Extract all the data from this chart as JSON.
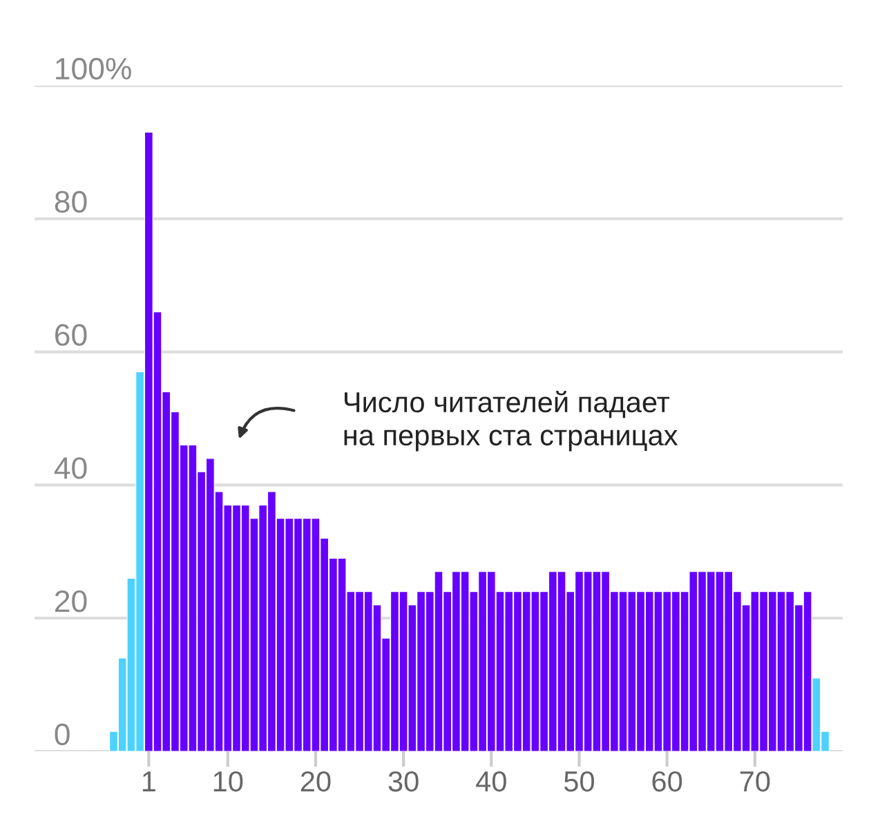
{
  "chart_data": {
    "type": "bar",
    "x": [
      -3,
      -2,
      -1,
      0,
      1,
      2,
      3,
      4,
      5,
      6,
      7,
      8,
      9,
      10,
      11,
      12,
      13,
      14,
      15,
      16,
      17,
      18,
      19,
      20,
      21,
      22,
      23,
      24,
      25,
      26,
      27,
      28,
      29,
      30,
      31,
      32,
      33,
      34,
      35,
      36,
      37,
      38,
      39,
      40,
      41,
      42,
      43,
      44,
      45,
      46,
      47,
      48,
      49,
      50,
      51,
      52,
      53,
      54,
      55,
      56,
      57,
      58,
      59,
      60,
      61,
      62,
      63,
      64,
      65,
      66,
      67,
      68,
      69,
      70,
      71,
      72,
      73,
      74,
      75,
      76,
      77,
      78
    ],
    "values": [
      3,
      14,
      26,
      57,
      93,
      66,
      54,
      51,
      46,
      46,
      42,
      44,
      39,
      37,
      37,
      37,
      35,
      37,
      39,
      35,
      35,
      35,
      35,
      35,
      32,
      29,
      29,
      24,
      24,
      24,
      22,
      17,
      24,
      24,
      22,
      24,
      24,
      27,
      24,
      27,
      27,
      24,
      27,
      27,
      24,
      24,
      24,
      24,
      24,
      24,
      27,
      27,
      24,
      27,
      27,
      27,
      27,
      24,
      24,
      24,
      24,
      24,
      24,
      24,
      24,
      24,
      27,
      27,
      27,
      27,
      27,
      24,
      22,
      24,
      24,
      24,
      24,
      24,
      22,
      24,
      11,
      3
    ],
    "colors": [
      "#4dd2ff",
      "#4dd2ff",
      "#4dd2ff",
      "#4dd2ff",
      "#6600ff",
      "#6600ff",
      "#6600ff",
      "#6600ff",
      "#6600ff",
      "#6600ff",
      "#6600ff",
      "#6600ff",
      "#6600ff",
      "#6600ff",
      "#6600ff",
      "#6600ff",
      "#6600ff",
      "#6600ff",
      "#6600ff",
      "#6600ff",
      "#6600ff",
      "#6600ff",
      "#6600ff",
      "#6600ff",
      "#6600ff",
      "#6600ff",
      "#6600ff",
      "#6600ff",
      "#6600ff",
      "#6600ff",
      "#6600ff",
      "#6600ff",
      "#6600ff",
      "#6600ff",
      "#6600ff",
      "#6600ff",
      "#6600ff",
      "#6600ff",
      "#6600ff",
      "#6600ff",
      "#6600ff",
      "#6600ff",
      "#6600ff",
      "#6600ff",
      "#6600ff",
      "#6600ff",
      "#6600ff",
      "#6600ff",
      "#6600ff",
      "#6600ff",
      "#6600ff",
      "#6600ff",
      "#6600ff",
      "#6600ff",
      "#6600ff",
      "#6600ff",
      "#6600ff",
      "#6600ff",
      "#6600ff",
      "#6600ff",
      "#6600ff",
      "#6600ff",
      "#6600ff",
      "#6600ff",
      "#6600ff",
      "#6600ff",
      "#6600ff",
      "#6600ff",
      "#6600ff",
      "#6600ff",
      "#6600ff",
      "#6600ff",
      "#6600ff",
      "#6600ff",
      "#6600ff",
      "#6600ff",
      "#6600ff",
      "#6600ff",
      "#6600ff",
      "#6600ff",
      "#4dd2ff",
      "#4dd2ff"
    ],
    "xlim": [
      -12,
      80
    ],
    "xticks": [
      1,
      10,
      20,
      30,
      40,
      50,
      60,
      70
    ],
    "ylim": [
      0,
      100
    ],
    "yticks": [
      0,
      20,
      40,
      60,
      80,
      {
        "value": 100,
        "label": "100%"
      }
    ],
    "grid": "y",
    "annotations": [
      "Число читателей падает\nна первых ста страницах"
    ]
  }
}
